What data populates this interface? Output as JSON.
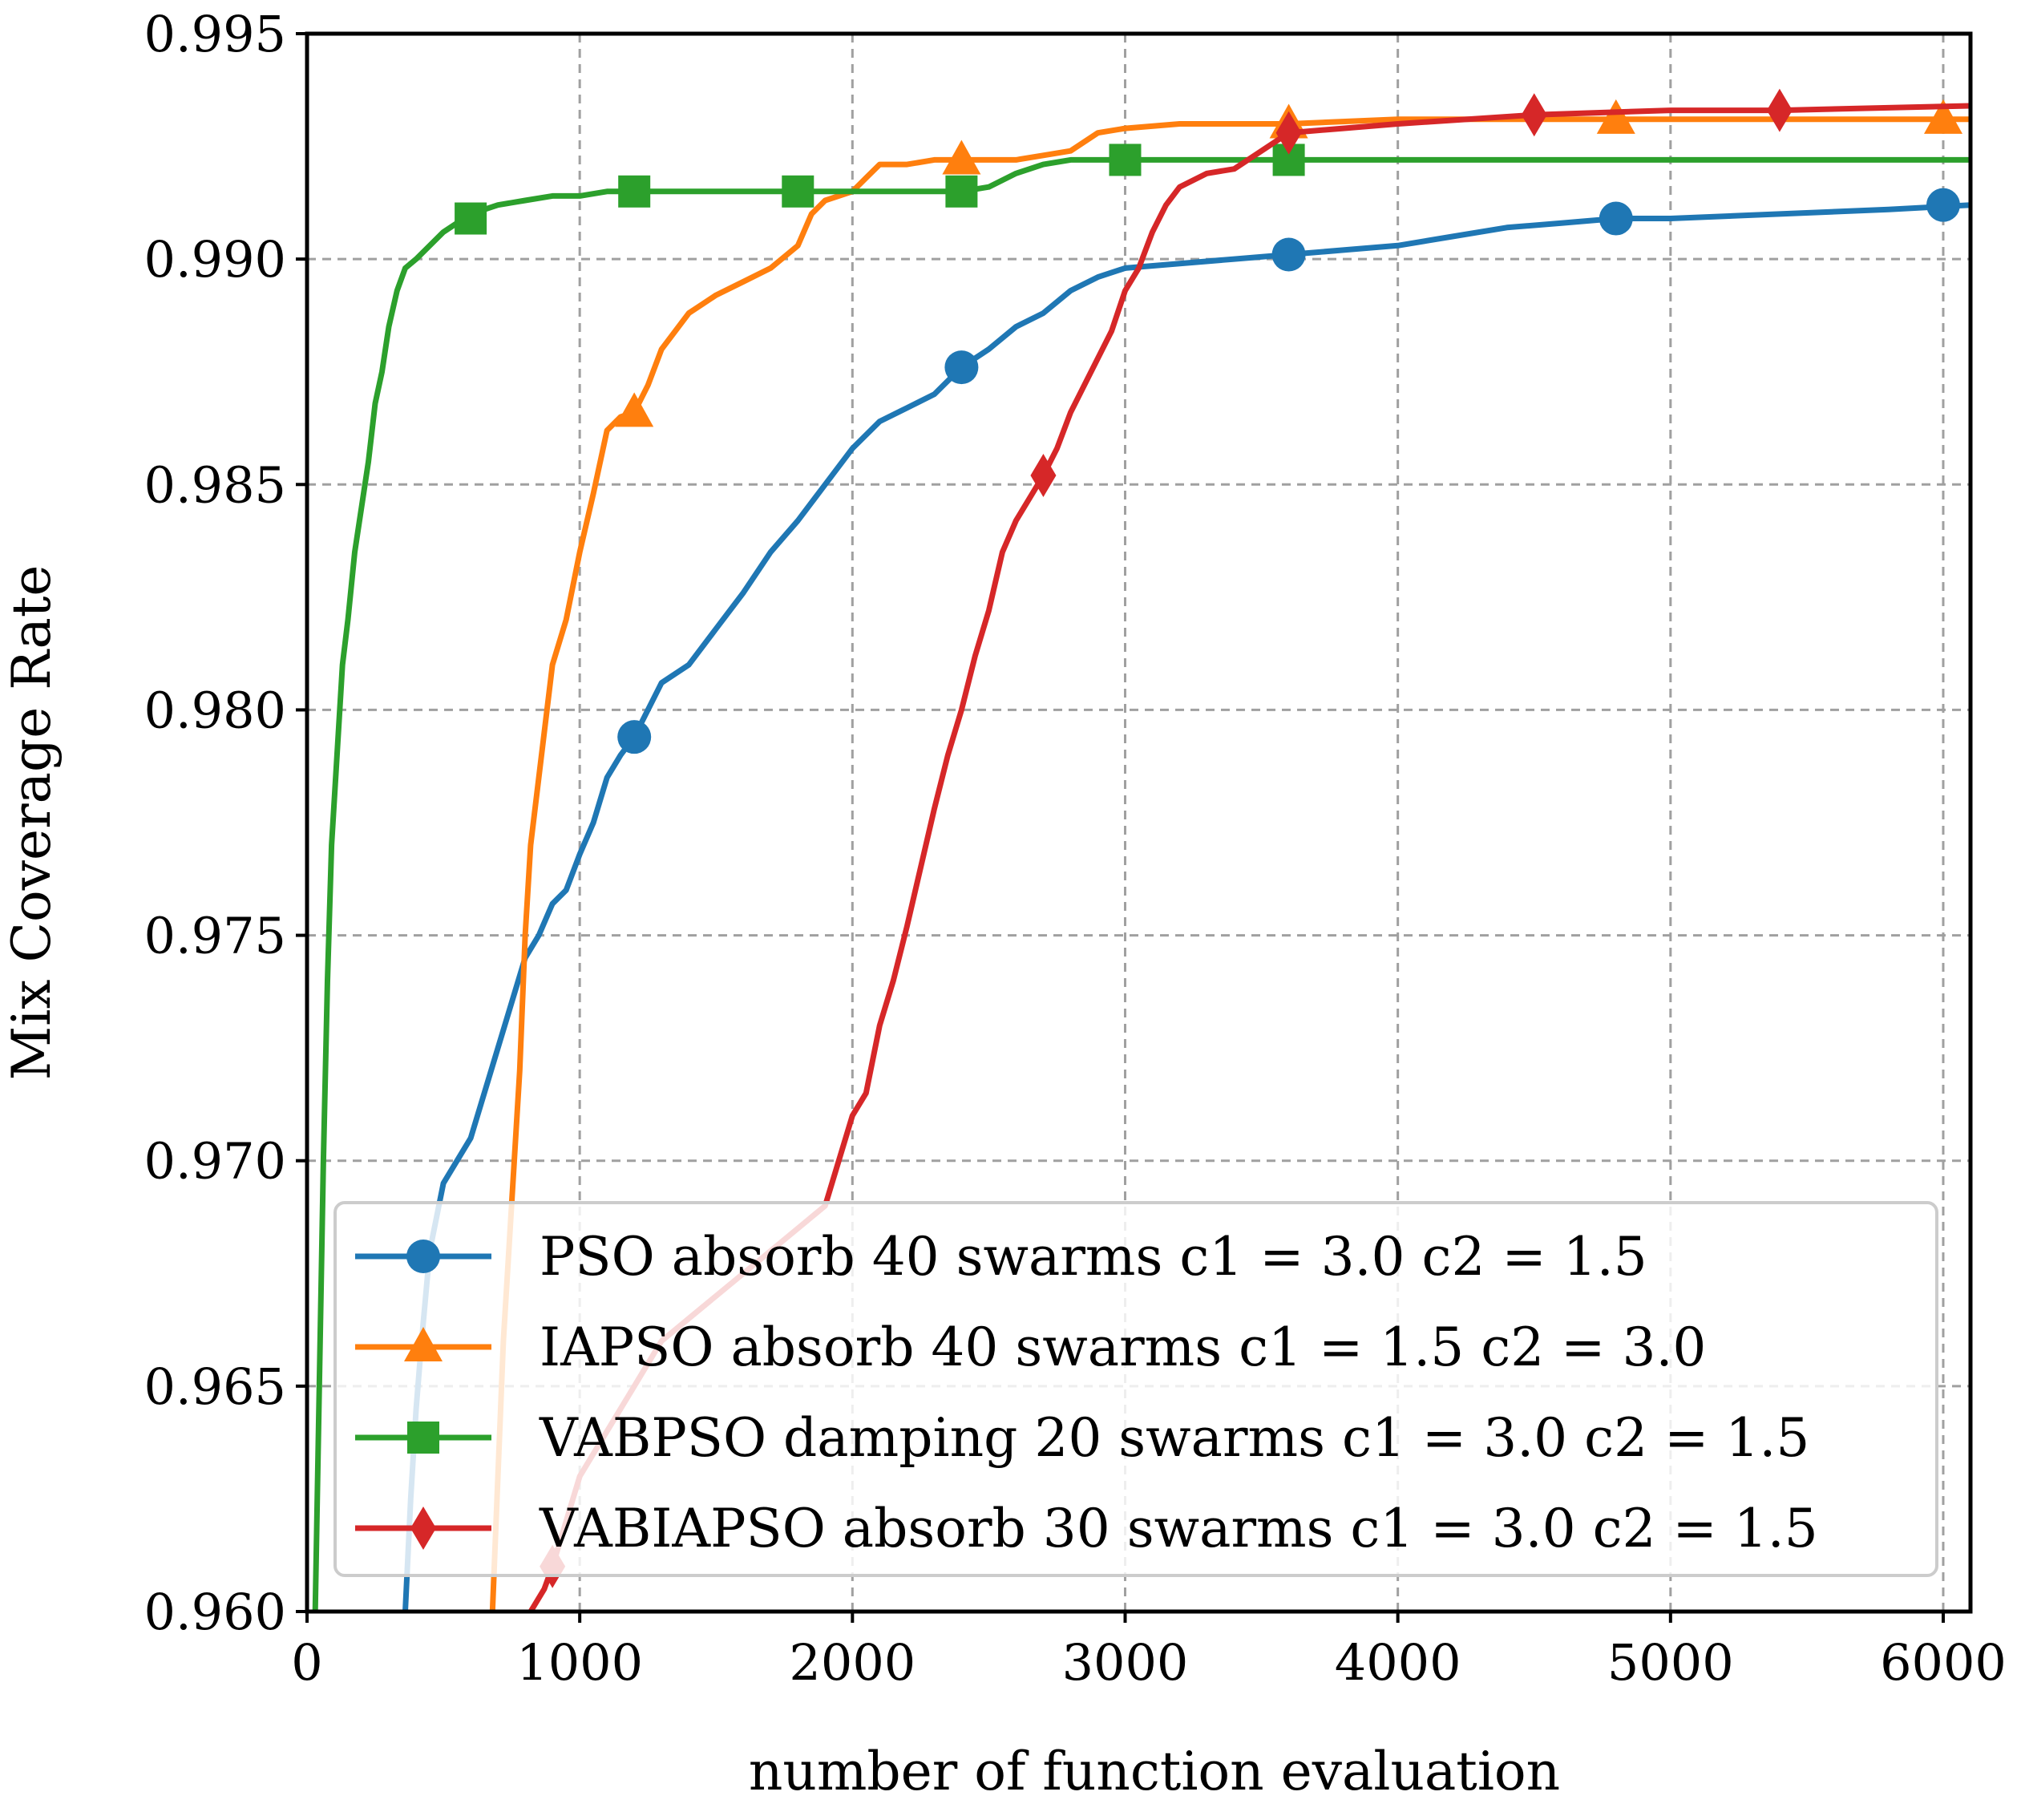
{
  "chart_data": {
    "type": "line",
    "title": "",
    "xlabel": "number of function evaluation",
    "ylabel": "Mix Coverage Rate",
    "xlim": [
      0,
      6100
    ],
    "ylim": [
      0.96,
      0.995
    ],
    "xticks": [
      0,
      1000,
      2000,
      3000,
      4000,
      5000,
      6000
    ],
    "xtick_labels": [
      "0",
      "1000",
      "2000",
      "3000",
      "4000",
      "5000",
      "6000"
    ],
    "yticks": [
      0.96,
      0.965,
      0.97,
      0.975,
      0.98,
      0.985,
      0.99,
      0.995
    ],
    "ytick_labels": [
      "0.960",
      "0.965",
      "0.970",
      "0.975",
      "0.980",
      "0.985",
      "0.990",
      "0.995"
    ],
    "grid": true,
    "legend_position": "lower-right",
    "series": [
      {
        "name": "PSO absorb 40 swarms c1 = 3.0 c2 = 1.5",
        "color": "#1f77b4",
        "marker": "circle",
        "x": [
          360,
          380,
          400,
          420,
          450,
          500,
          550,
          600,
          650,
          700,
          750,
          800,
          850,
          900,
          950,
          1000,
          1050,
          1100,
          1150,
          1200,
          1250,
          1300,
          1400,
          1500,
          1600,
          1700,
          1800,
          1900,
          2000,
          2100,
          2200,
          2300,
          2400,
          2500,
          2600,
          2700,
          2800,
          2900,
          3000,
          3200,
          3400,
          3600,
          3800,
          4000,
          4200,
          4400,
          4600,
          4800,
          5000,
          5400,
          5800,
          6100
        ],
        "y": [
          0.96,
          0.9625,
          0.9645,
          0.966,
          0.968,
          0.9695,
          0.97,
          0.9705,
          0.9715,
          0.9725,
          0.9735,
          0.9745,
          0.975,
          0.9757,
          0.976,
          0.9768,
          0.9775,
          0.9785,
          0.979,
          0.9794,
          0.98,
          0.9806,
          0.981,
          0.9818,
          0.9826,
          0.9835,
          0.9842,
          0.985,
          0.9858,
          0.9864,
          0.9867,
          0.987,
          0.9876,
          0.988,
          0.9885,
          0.9888,
          0.9893,
          0.9896,
          0.9898,
          0.9899,
          0.99,
          0.9901,
          0.9902,
          0.9903,
          0.9905,
          0.9907,
          0.9908,
          0.9909,
          0.9909,
          0.991,
          0.9911,
          0.9912
        ],
        "markers": [
          [
            1200,
            0.9794
          ],
          [
            2400,
            0.9876
          ],
          [
            3600,
            0.9901
          ],
          [
            4800,
            0.9909
          ],
          [
            6000,
            0.9912
          ]
        ]
      },
      {
        "name": "IAPSO absorb 40 swarms c1 = 1.5 c2 = 3.0",
        "color": "#ff7f0e",
        "marker": "triangle",
        "x": [
          680,
          700,
          720,
          740,
          760,
          780,
          800,
          820,
          850,
          880,
          900,
          950,
          1000,
          1050,
          1100,
          1150,
          1200,
          1250,
          1300,
          1400,
          1500,
          1600,
          1700,
          1800,
          1850,
          1900,
          2000,
          2050,
          2100,
          2200,
          2300,
          2400,
          2500,
          2600,
          2700,
          2800,
          2900,
          3000,
          3200,
          3400,
          3600,
          4000,
          4400,
          4800,
          5200,
          6100
        ],
        "y": [
          0.96,
          0.963,
          0.966,
          0.968,
          0.97,
          0.972,
          0.975,
          0.977,
          0.9785,
          0.98,
          0.981,
          0.982,
          0.9835,
          0.9848,
          0.9862,
          0.9865,
          0.9866,
          0.9872,
          0.988,
          0.9888,
          0.9892,
          0.9895,
          0.9898,
          0.9903,
          0.991,
          0.9913,
          0.9915,
          0.9918,
          0.9921,
          0.9921,
          0.9922,
          0.9922,
          0.9922,
          0.9922,
          0.9923,
          0.9924,
          0.9928,
          0.9929,
          0.993,
          0.993,
          0.993,
          0.9931,
          0.9931,
          0.9931,
          0.9931,
          0.9931
        ],
        "markers": [
          [
            1200,
            0.9866
          ],
          [
            2400,
            0.9922
          ],
          [
            3600,
            0.993
          ],
          [
            4800,
            0.9931
          ],
          [
            6000,
            0.9931
          ]
        ]
      },
      {
        "name": "VABPSO damping 20 swarms c1 = 3.0 c2 = 1.5",
        "color": "#2ca02c",
        "marker": "square",
        "x": [
          30,
          45,
          60,
          75,
          90,
          110,
          130,
          150,
          175,
          200,
          225,
          250,
          275,
          300,
          330,
          360,
          400,
          450,
          500,
          550,
          600,
          650,
          700,
          800,
          900,
          1000,
          1100,
          1200,
          1400,
          1600,
          1800,
          2000,
          2200,
          2400,
          2500,
          2600,
          2700,
          2800,
          3000,
          3200,
          3600,
          4000,
          5000,
          6100
        ],
        "y": [
          0.96,
          0.965,
          0.97,
          0.974,
          0.977,
          0.979,
          0.981,
          0.982,
          0.9835,
          0.9845,
          0.9855,
          0.9868,
          0.9875,
          0.9885,
          0.9893,
          0.9898,
          0.99,
          0.9903,
          0.9906,
          0.9908,
          0.9909,
          0.9911,
          0.9912,
          0.9913,
          0.9914,
          0.9914,
          0.9915,
          0.9915,
          0.9915,
          0.9915,
          0.9915,
          0.9915,
          0.9915,
          0.9915,
          0.9916,
          0.9919,
          0.9921,
          0.9922,
          0.9922,
          0.9922,
          0.9922,
          0.9922,
          0.9922,
          0.9922
        ],
        "markers": [
          [
            600,
            0.9909
          ],
          [
            1200,
            0.9915
          ],
          [
            1800,
            0.9915
          ],
          [
            2400,
            0.9915
          ],
          [
            3000,
            0.9922
          ],
          [
            3600,
            0.9922
          ]
        ]
      },
      {
        "name": "VABIAPSO absorb 30 swarms c1 = 3.0 c2 = 1.5",
        "color": "#d62728",
        "marker": "diamond",
        "x": [
          820,
          870,
          900,
          950,
          1000,
          1100,
          1200,
          1300,
          1400,
          1500,
          1600,
          1700,
          1800,
          1900,
          1950,
          2000,
          2050,
          2100,
          2150,
          2200,
          2250,
          2300,
          2350,
          2400,
          2450,
          2500,
          2550,
          2600,
          2650,
          2700,
          2750,
          2800,
          2850,
          2900,
          2950,
          3000,
          3050,
          3100,
          3150,
          3200,
          3300,
          3400,
          3600,
          3800,
          4000,
          4500,
          5000,
          5400,
          6100
        ],
        "y": [
          0.96,
          0.9605,
          0.961,
          0.962,
          0.963,
          0.964,
          0.965,
          0.966,
          0.9665,
          0.967,
          0.9675,
          0.968,
          0.9685,
          0.969,
          0.97,
          0.971,
          0.9715,
          0.973,
          0.974,
          0.9752,
          0.9765,
          0.9778,
          0.979,
          0.98,
          0.9812,
          0.9822,
          0.9835,
          0.9842,
          0.9847,
          0.9852,
          0.9858,
          0.9866,
          0.9872,
          0.9878,
          0.9884,
          0.9893,
          0.9898,
          0.9906,
          0.9912,
          0.9916,
          0.9919,
          0.992,
          0.9928,
          0.9929,
          0.993,
          0.9932,
          0.9933,
          0.9933,
          0.9934
        ],
        "markers": [
          [
            900,
            0.961
          ],
          [
            2700,
            0.9852
          ],
          [
            3600,
            0.9928
          ],
          [
            4500,
            0.9932
          ],
          [
            5400,
            0.9933
          ]
        ]
      }
    ]
  }
}
